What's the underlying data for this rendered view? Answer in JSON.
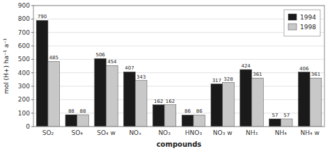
{
  "chart_data": {
    "type": "bar",
    "categories": [
      "SO₂",
      "SO₄",
      "SO₄ w",
      "NOₓ",
      "NO₃",
      "HNO₃",
      "NO₃ w",
      "NH₃",
      "NH₄",
      "NH₄ w"
    ],
    "series": [
      {
        "name": "1994",
        "color": "#1a1a1a",
        "values": [
          790,
          88,
          506,
          407,
          162,
          86,
          317,
          424,
          57,
          406
        ]
      },
      {
        "name": "1998",
        "color": "#c8c8c8",
        "values": [
          485,
          88,
          454,
          343,
          162,
          86,
          328,
          361,
          57,
          361
        ]
      }
    ],
    "ylabel": "mol (H+) ha⁻¹ a⁻¹",
    "xlabel": "compounds",
    "ylim": [
      0,
      900
    ],
    "yticks": [
      0,
      100,
      200,
      300,
      400,
      500,
      600,
      700,
      800,
      900
    ],
    "grid": true,
    "legend": "upper right",
    "data_labels": true
  }
}
